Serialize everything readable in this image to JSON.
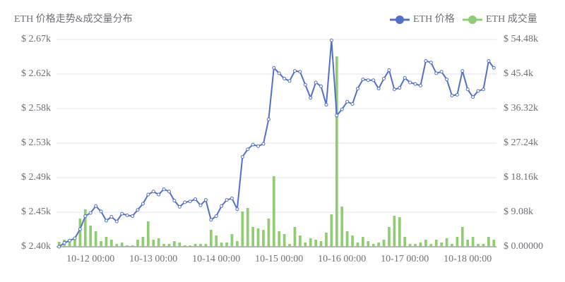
{
  "chart_data": {
    "type": "bar-line",
    "title": "ETH 价格走势&成交量分布",
    "categories": [
      null,
      null,
      null,
      null,
      null,
      null,
      "10-12 00:00",
      null,
      null,
      null,
      null,
      null,
      null,
      null,
      null,
      null,
      null,
      null,
      "10-13 00:00",
      null,
      null,
      null,
      null,
      null,
      null,
      null,
      null,
      null,
      null,
      null,
      "10-14 00:00",
      null,
      null,
      null,
      null,
      null,
      null,
      null,
      null,
      null,
      null,
      null,
      "10-15 00:00",
      null,
      null,
      null,
      null,
      null,
      null,
      null,
      null,
      null,
      null,
      null,
      "10-16 00:00",
      null,
      null,
      null,
      null,
      null,
      null,
      null,
      null,
      null,
      null,
      null,
      "10-17 00:00",
      null,
      null,
      null,
      null,
      null,
      null,
      null,
      null,
      null,
      null,
      null,
      "10-18 00:00",
      null,
      null,
      null,
      null,
      null
    ],
    "series": [
      {
        "name": "ETH 价格",
        "type": "line",
        "color": "#5470c6",
        "axis": "y",
        "values": [
          2400,
          2405,
          2408,
          2411,
          2423,
          2440,
          2444,
          2453,
          2446,
          2434,
          2439,
          2433,
          2443,
          2441,
          2440,
          2448,
          2456,
          2468,
          2472,
          2468,
          2475,
          2472,
          2460,
          2452,
          2458,
          2459,
          2462,
          2454,
          2461,
          2435,
          2440,
          2453,
          2461,
          2463,
          2449,
          2517,
          2527,
          2533,
          2531,
          2534,
          2566,
          2633,
          2626,
          2619,
          2616,
          2629,
          2628,
          2611,
          2594,
          2614,
          2609,
          2585,
          2669,
          2571,
          2579,
          2589,
          2586,
          2606,
          2618,
          2617,
          2617,
          2606,
          2619,
          2630,
          2605,
          2607,
          2620,
          2614,
          2612,
          2610,
          2642,
          2640,
          2626,
          2628,
          2618,
          2597,
          2598,
          2629,
          2605,
          2595,
          2603,
          2605,
          2642,
          2633
        ]
      },
      {
        "name": "ETH 成交量",
        "type": "bar",
        "color": "#91cc75",
        "axis": "y2",
        "values": [
          1300,
          1850,
          1480,
          2220,
          7410,
          9820,
          5560,
          4080,
          1480,
          2590,
          1850,
          740,
          1110,
          370,
          370,
          1850,
          2590,
          6670,
          1850,
          2220,
          740,
          740,
          1480,
          1110,
          370,
          370,
          740,
          740,
          740,
          4450,
          2960,
          1110,
          1110,
          3340,
          1480,
          9270,
          10190,
          5190,
          4820,
          4450,
          7410,
          18530,
          4080,
          3340,
          740,
          5190,
          2960,
          1110,
          2220,
          1850,
          1480,
          3710,
          8520,
          50030,
          10560,
          4080,
          2960,
          1110,
          2590,
          1480,
          740,
          1110,
          1850,
          5190,
          8150,
          7780,
          2590,
          740,
          740,
          1110,
          1850,
          740,
          1850,
          1110,
          2220,
          740,
          2590,
          5190,
          1850,
          2590,
          740,
          740,
          2590,
          1850
        ]
      }
    ],
    "ylim": [
      2400,
      2670
    ],
    "yticks": [
      {
        "value": 2400,
        "label": "$ 2.40k"
      },
      {
        "value": 2445,
        "label": "$ 2.45k"
      },
      {
        "value": 2490,
        "label": "$ 2.49k"
      },
      {
        "value": 2535,
        "label": "$ 2.53k"
      },
      {
        "value": 2580,
        "label": "$ 2.58k"
      },
      {
        "value": 2625,
        "label": "$ 2.62k"
      },
      {
        "value": 2670,
        "label": "$ 2.67k"
      }
    ],
    "y2lim": [
      0,
      54480
    ],
    "y2ticks": [
      {
        "value": 0,
        "label": "$ 0.00000"
      },
      {
        "value": 9080,
        "label": "$ 9.08k"
      },
      {
        "value": 18160,
        "label": "$ 18.16k"
      },
      {
        "value": 27240,
        "label": "$ 27.24k"
      },
      {
        "value": 36320,
        "label": "$ 36.32k"
      },
      {
        "value": 45400,
        "label": "$ 45.4k"
      },
      {
        "value": 54480,
        "label": "$ 54.48k"
      }
    ],
    "grid": true,
    "legend": "top-right"
  }
}
